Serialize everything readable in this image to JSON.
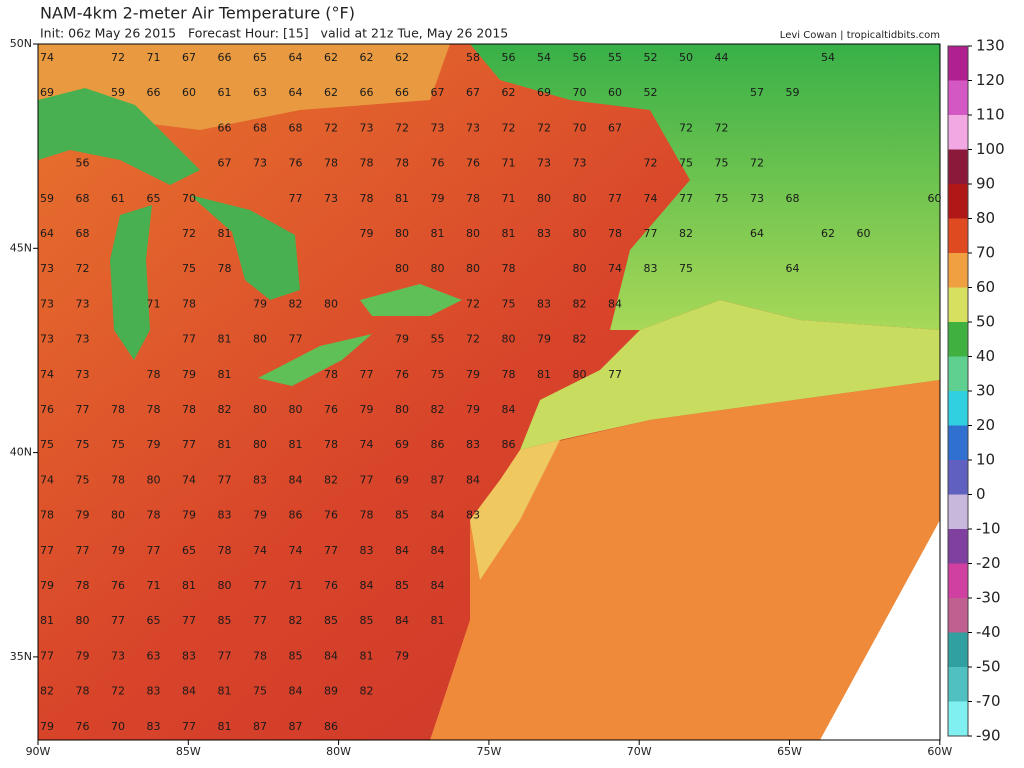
{
  "header": {
    "title": "NAM-4km 2-meter Air Temperature (°F)",
    "subtitle": "Init: 06z May 26 2015   Forecast Hour: [15]   valid at 21z Tue, May 26 2015",
    "credit": "Levi Cowan | tropicaltidbits.com"
  },
  "lon_labels": [
    "90W",
    "85W",
    "80W",
    "75W",
    "70W",
    "65W",
    "60W"
  ],
  "lat_labels": [
    "50N",
    "45N",
    "40N",
    "35N"
  ],
  "colorbar": {
    "labels": [
      130,
      120,
      110,
      100,
      90,
      80,
      70,
      60,
      50,
      40,
      30,
      20,
      10,
      0,
      -10,
      -20,
      -30,
      -40,
      -50,
      -70,
      -90
    ],
    "colors": [
      "#b0208f",
      "#d458c4",
      "#f2a8e2",
      "#8b1a3a",
      "#b01818",
      "#e04a20",
      "#f0a040",
      "#d8e060",
      "#40b040",
      "#60d090",
      "#30d0e0",
      "#3070d0",
      "#6060c0",
      "#c8b8dc",
      "#8040a0",
      "#d040a0",
      "#c06090",
      "#30a0a0",
      "#50c0c0",
      "#80f0f0"
    ]
  },
  "station_rows": [
    [
      74,
      null,
      72,
      71,
      67,
      66,
      65,
      64,
      62,
      62,
      62,
      null,
      58,
      56,
      54,
      56,
      55,
      52,
      50,
      44,
      null,
      null,
      54
    ],
    [
      69,
      null,
      59,
      66,
      60,
      61,
      63,
      64,
      62,
      66,
      66,
      67,
      67,
      62,
      69,
      70,
      60,
      52,
      null,
      null,
      57,
      59
    ],
    [
      null,
      null,
      null,
      null,
      null,
      66,
      68,
      68,
      72,
      73,
      72,
      73,
      73,
      72,
      72,
      70,
      67,
      null,
      72,
      72
    ],
    [
      null,
      56,
      null,
      null,
      null,
      67,
      73,
      76,
      78,
      78,
      78,
      76,
      76,
      71,
      73,
      73,
      null,
      72,
      75,
      75,
      72
    ],
    [
      59,
      68,
      61,
      65,
      70,
      null,
      null,
      77,
      73,
      78,
      81,
      79,
      78,
      71,
      80,
      80,
      77,
      74,
      77,
      75,
      73,
      68,
      null,
      null,
      null,
      60
    ],
    [
      64,
      68,
      null,
      null,
      72,
      81,
      null,
      null,
      null,
      79,
      80,
      81,
      80,
      81,
      83,
      80,
      78,
      77,
      82,
      null,
      64,
      null,
      62,
      60
    ],
    [
      73,
      72,
      null,
      null,
      75,
      78,
      null,
      null,
      null,
      null,
      80,
      80,
      80,
      78,
      null,
      80,
      74,
      83,
      75,
      null,
      null,
      64
    ],
    [
      73,
      73,
      null,
      71,
      78,
      null,
      79,
      82,
      80,
      null,
      null,
      null,
      72,
      75,
      83,
      82,
      84
    ],
    [
      73,
      73,
      null,
      null,
      77,
      81,
      80,
      77,
      null,
      null,
      79,
      55,
      72,
      80,
      79,
      82
    ],
    [
      74,
      73,
      null,
      78,
      79,
      81,
      null,
      null,
      78,
      77,
      76,
      75,
      79,
      78,
      81,
      80,
      77
    ],
    [
      76,
      77,
      78,
      78,
      78,
      82,
      80,
      80,
      76,
      79,
      80,
      82,
      79,
      84
    ],
    [
      75,
      75,
      75,
      79,
      77,
      81,
      80,
      81,
      78,
      74,
      69,
      86,
      83,
      86
    ],
    [
      74,
      75,
      78,
      80,
      74,
      77,
      83,
      84,
      82,
      77,
      69,
      87,
      84
    ],
    [
      78,
      79,
      80,
      78,
      79,
      83,
      79,
      86,
      76,
      78,
      85,
      84,
      83
    ],
    [
      77,
      77,
      79,
      77,
      65,
      78,
      74,
      74,
      77,
      83,
      84,
      84
    ],
    [
      79,
      78,
      76,
      71,
      81,
      80,
      77,
      71,
      76,
      84,
      85,
      84
    ],
    [
      81,
      80,
      77,
      65,
      77,
      85,
      77,
      82,
      85,
      85,
      84,
      81
    ],
    [
      77,
      79,
      73,
      63,
      83,
      77,
      78,
      85,
      84,
      81,
      79
    ],
    [
      82,
      78,
      72,
      83,
      84,
      81,
      75,
      84,
      89,
      82
    ],
    [
      79,
      76,
      70,
      83,
      77,
      81,
      87,
      87,
      86
    ]
  ]
}
